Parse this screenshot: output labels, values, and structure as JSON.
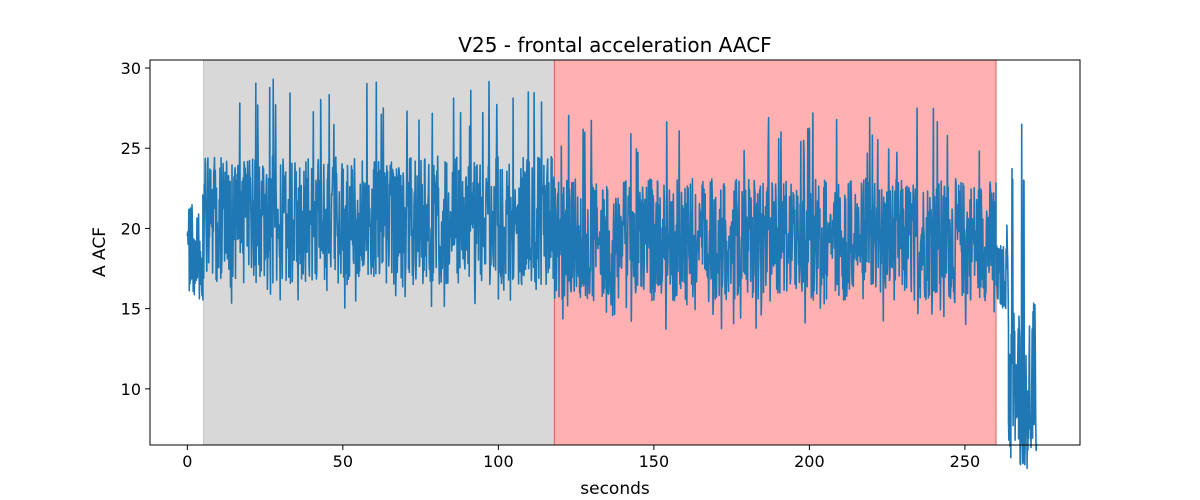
{
  "chart_data": {
    "type": "line",
    "title": "V25 - frontal acceleration AACF",
    "xlabel": "seconds",
    "ylabel": "A ACF",
    "xlim": [
      -12,
      287
    ],
    "ylim": [
      6.5,
      30.5
    ],
    "x_ticks": [
      0,
      50,
      100,
      150,
      200,
      250
    ],
    "y_ticks": [
      10,
      15,
      20,
      25,
      30
    ],
    "grid": false,
    "regions": [
      {
        "x_start": 5.2,
        "x_end": 118,
        "color": "#d8d8d8"
      },
      {
        "x_start": 118,
        "x_end": 260,
        "color": "#ffb1b1"
      }
    ],
    "series": [
      {
        "color": "#1f77b4",
        "segments": [
          {
            "x_start": 0,
            "x_end": 5,
            "mean": 18.5,
            "low": 12.5,
            "high": 23.4
          },
          {
            "x_start": 5,
            "x_end": 118,
            "mean": 20.5,
            "low": 14.8,
            "high": 29.4
          },
          {
            "x_start": 118,
            "x_end": 260,
            "mean": 19.3,
            "low": 13.6,
            "high": 27.5
          },
          {
            "x_start": 260,
            "x_end": 264,
            "mean": 17.0,
            "low": 13.0,
            "high": 20.5
          },
          {
            "x_start": 264,
            "x_end": 273,
            "mean": 10.2,
            "low": 7.4,
            "high": 26.7
          }
        ]
      }
    ]
  }
}
